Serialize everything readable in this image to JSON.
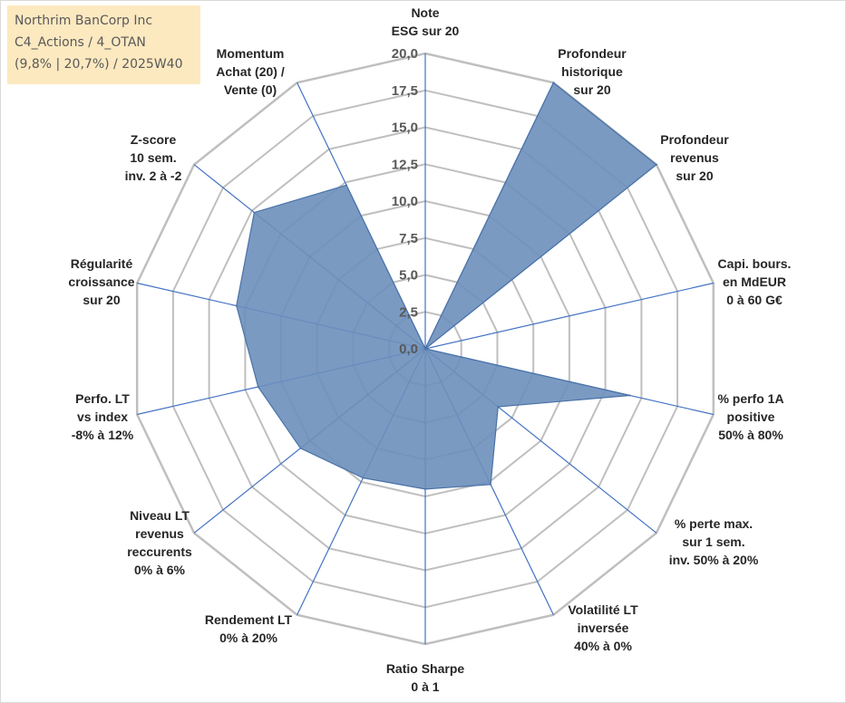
{
  "info_box": {
    "line1": "Northrim BanCorp Inc",
    "line2": "C4_Actions / 4_OTAN",
    "line3": "(9,8% | 20,7%) / 2025W40"
  },
  "chart_data": {
    "type": "radar",
    "rmax": 20,
    "ticks": [
      "0,0",
      "2,5",
      "5,0",
      "7,5",
      "10,0",
      "12,5",
      "15,0",
      "17,5",
      "20,0"
    ],
    "axes": [
      {
        "label": [
          "Note",
          "ESG sur 20"
        ],
        "value": 0
      },
      {
        "label": [
          "Profondeur",
          "historique",
          "sur 20"
        ],
        "value": 20
      },
      {
        "label": [
          "Profondeur",
          "revenus",
          "sur 20"
        ],
        "value": 20
      },
      {
        "label": [
          "Capi. bours.",
          "en MdEUR",
          "0 à 60 G€"
        ],
        "value": 0
      },
      {
        "label": [
          "% perfo 1A",
          "positive",
          "50% à 80%"
        ],
        "value": 14.2
      },
      {
        "label": [
          "% perte max.",
          "sur 1 sem.",
          "inv. 50% à 20%"
        ],
        "value": 6.3
      },
      {
        "label": [
          "Volatilité LT",
          "inversée",
          "40% à 0%"
        ],
        "value": 10.2
      },
      {
        "label": [
          "Ratio Sharpe",
          "0 à 1"
        ],
        "value": 9.5
      },
      {
        "label": [
          "Rendement LT",
          "0% à 20%"
        ],
        "value": 9.7
      },
      {
        "label": [
          "Niveau LT",
          "revenus",
          "reccurents",
          "0% à 6%"
        ],
        "value": 10.8
      },
      {
        "label": [
          "Perfo. LT",
          "vs index",
          "-8% à 12%"
        ],
        "value": 11.6
      },
      {
        "label": [
          "Régularité",
          "croissance",
          "sur 20"
        ],
        "value": 13.1
      },
      {
        "label": [
          "Z-score",
          "10 sem.",
          "inv. 2 à -2"
        ],
        "value": 14.8
      },
      {
        "label": [
          "Momentum",
          "Achat (20) /",
          "Vente (0)"
        ],
        "value": 12.3
      }
    ],
    "colors": {
      "fill": "#6b8fbb",
      "stroke": "#4a72a8",
      "grid": "#bfbfbf",
      "spoke": "#4472c4"
    }
  }
}
